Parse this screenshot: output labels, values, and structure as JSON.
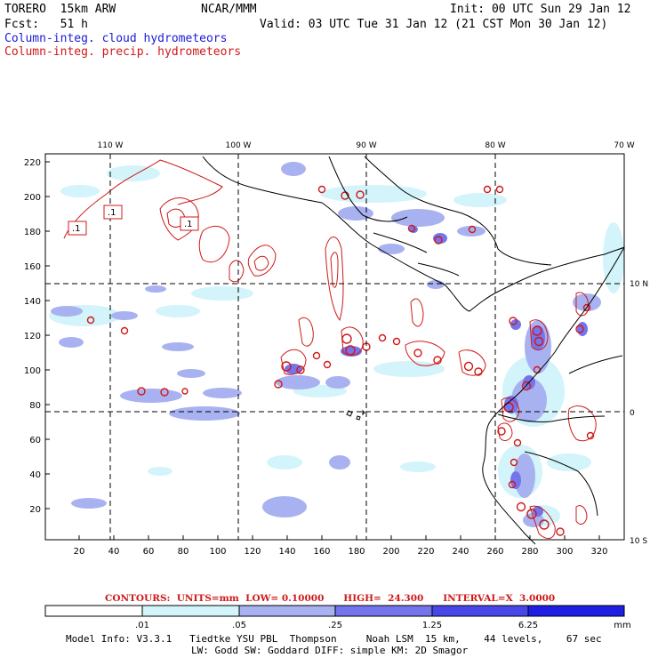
{
  "header": {
    "model": "TORERO  15km ARW",
    "center": "NCAR/MMM",
    "init": "Init: 00 UTC Sun 29 Jan 12",
    "fcst": "Fcst:   51 h",
    "valid": "Valid: 03 UTC Tue 31 Jan 12 (21 CST Mon 30 Jan 12)"
  },
  "legend": {
    "cloud": "Column-integ. cloud hydrometeors",
    "precip": "Column-integ. precip. hydrometeors"
  },
  "axes": {
    "top_lon_labels": [
      "110 W",
      "100 W",
      "90 W",
      "80 W",
      "70 W"
    ],
    "right_lat_labels": [
      "10 N",
      "0",
      "10 S"
    ],
    "left_y_ticks": [
      "220",
      "200",
      "180",
      "160",
      "140",
      "120",
      "100",
      "80",
      "60",
      "40",
      "20"
    ],
    "bottom_x_ticks": [
      "20",
      "40",
      "60",
      "80",
      "100",
      "120",
      "140",
      "160",
      "180",
      "200",
      "220",
      "240",
      "260",
      "280",
      "300",
      "320"
    ]
  },
  "contour_labels": [
    ".1",
    ".1",
    ".1"
  ],
  "contours_line": {
    "label": "CONTOURS:  UNITS=mm  LOW= 0.10000      HIGH=  24.300      INTERVAL=X  3.0000"
  },
  "colorbar": {
    "ticks": [
      ".01",
      ".05",
      ".25",
      "1.25",
      "6.25"
    ],
    "unit": "mm",
    "colors": [
      "#ffffff",
      "#d2f4fa",
      "#a8b2f0",
      "#7474ec",
      "#4848e8",
      "#1e1ee4"
    ]
  },
  "model_info": {
    "line1": "Model Info: V3.3.1   Tiedtke YSU PBL  Thompson     Noah LSM  15 km,    44 levels,    67 sec",
    "line2": "LW: Godd SW: Goddard DIFF: simple KM: 2D Smagor"
  },
  "colors": {
    "cloud": "#1a1ad8",
    "precip": "#d01818",
    "light": "#d2f4fa",
    "mid": "#a8b2f0",
    "strong": "#7474ec"
  }
}
